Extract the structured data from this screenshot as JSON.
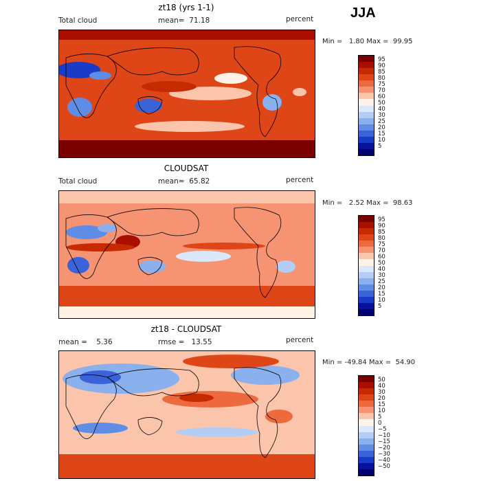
{
  "season": "JJA",
  "panels": [
    {
      "title": "zt18 (yrs 1-1)",
      "left_label": "Total cloud",
      "center_label": "mean=  71.18",
      "right_label": "percent",
      "minmax": "Min =   1.80 Max =  99.95",
      "colorbar_labels": [
        "95",
        "90",
        "85",
        "80",
        "75",
        "70",
        "60",
        "50",
        "40",
        "30",
        "25",
        "20",
        "15",
        "10",
        "5"
      ]
    },
    {
      "title": "CLOUDSAT",
      "left_label": "Total cloud",
      "center_label": "mean=  65.82",
      "right_label": "percent",
      "minmax": "Min =   2.52 Max =  98.63",
      "colorbar_labels": [
        "95",
        "90",
        "85",
        "80",
        "75",
        "70",
        "60",
        "50",
        "40",
        "30",
        "25",
        "20",
        "15",
        "10",
        "5"
      ]
    },
    {
      "title": "zt18 - CLOUDSAT",
      "left_label": "mean =    5.36",
      "center_label": "rmse =   13.55",
      "right_label": "percent",
      "minmax": "Min = -49.84 Max =  54.90",
      "colorbar_labels": [
        "50",
        "40",
        "30",
        "20",
        "15",
        "10",
        "5",
        "0",
        "−5",
        "−10",
        "−15",
        "−20",
        "−30",
        "−40",
        "−50"
      ]
    }
  ],
  "colors": {
    "scale": [
      "#7a0000",
      "#a80f00",
      "#c52a00",
      "#de4618",
      "#ed6a3e",
      "#f59373",
      "#fbc5ac",
      "#fff2e6",
      "#dbe8fb",
      "#b3cdf5",
      "#8ab0ee",
      "#5f8ce4",
      "#3a63d8",
      "#1a3bc7",
      "#06129a",
      "#000070"
    ]
  }
}
